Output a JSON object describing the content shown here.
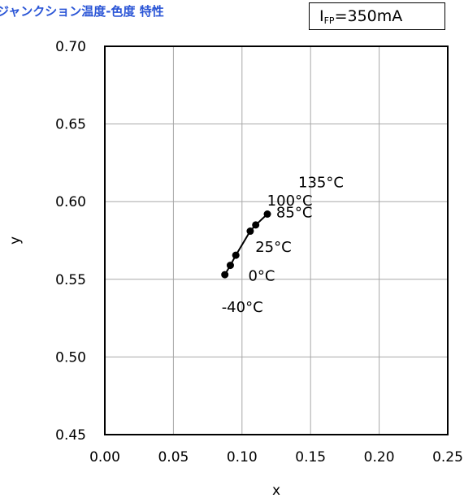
{
  "header": {
    "title": "ジャンクション温度-色度 特性",
    "condition_symbol": "I",
    "condition_sub": "FP",
    "condition_value": "=350mA"
  },
  "chart_data": {
    "type": "scatter",
    "title": "ジャンクション温度-色度 特性",
    "xlabel": "x",
    "ylabel": "y",
    "xlim": [
      0.0,
      0.25
    ],
    "ylim": [
      0.45,
      0.7
    ],
    "x_ticks": [
      "0.00",
      "0.05",
      "0.10",
      "0.15",
      "0.20",
      "0.25"
    ],
    "y_ticks": [
      "0.45",
      "0.50",
      "0.55",
      "0.60",
      "0.65",
      "0.70"
    ],
    "grid": true,
    "series": [
      {
        "points": [
          {
            "x": 0.0875,
            "y": 0.553,
            "label": "-40°C"
          },
          {
            "x": 0.0915,
            "y": 0.559,
            "label": "0°C"
          },
          {
            "x": 0.0955,
            "y": 0.5655,
            "label": "25°C"
          },
          {
            "x": 0.106,
            "y": 0.581,
            "label": "85°C"
          },
          {
            "x": 0.11,
            "y": 0.585,
            "label": "100°C"
          },
          {
            "x": 0.1185,
            "y": 0.592,
            "label": "135°C"
          }
        ]
      }
    ],
    "line_color": "#000000",
    "marker_color": "#000000"
  }
}
